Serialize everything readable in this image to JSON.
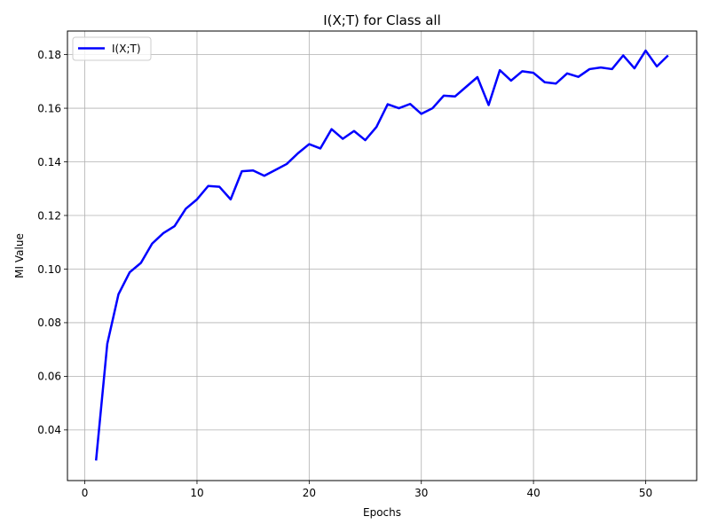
{
  "chart_data": {
    "type": "line",
    "title": "I(X;T) for Class all",
    "xlabel": "Epochs",
    "ylabel": "MI Value",
    "xlim": [
      -1.55,
      54.55
    ],
    "ylim": [
      0.0211,
      0.1888
    ],
    "xticks": [
      0,
      10,
      20,
      30,
      40,
      50
    ],
    "yticks": [
      0.04,
      0.06,
      0.08,
      0.1,
      0.12,
      0.14,
      0.16,
      0.18
    ],
    "xtick_labels": [
      "0",
      "10",
      "20",
      "30",
      "40",
      "50"
    ],
    "ytick_labels": [
      "0.04",
      "0.06",
      "0.08",
      "0.10",
      "0.12",
      "0.14",
      "0.16",
      "0.18"
    ],
    "grid": true,
    "legend_position": "top-left",
    "series": [
      {
        "name": "I(X;T)",
        "color": "#0000ff",
        "x": [
          1,
          2,
          3,
          4,
          5,
          6,
          7,
          8,
          9,
          10,
          11,
          12,
          13,
          14,
          15,
          16,
          17,
          18,
          19,
          20,
          21,
          22,
          23,
          24,
          25,
          26,
          27,
          28,
          29,
          30,
          31,
          32,
          33,
          34,
          35,
          36,
          37,
          38,
          39,
          40,
          41,
          42,
          43,
          44,
          45,
          46,
          47,
          48,
          49,
          50,
          51,
          52
        ],
        "values": [
          0.0286,
          0.0721,
          0.0906,
          0.0988,
          0.1023,
          0.1095,
          0.1134,
          0.116,
          0.1225,
          0.126,
          0.131,
          0.1307,
          0.126,
          0.1365,
          0.1368,
          0.1348,
          0.137,
          0.1392,
          0.1432,
          0.1466,
          0.145,
          0.1522,
          0.1486,
          0.1515,
          0.1481,
          0.153,
          0.1615,
          0.16,
          0.1616,
          0.1579,
          0.16,
          0.1647,
          0.1644,
          0.168,
          0.1716,
          0.1612,
          0.1742,
          0.1703,
          0.1738,
          0.1732,
          0.1697,
          0.1692,
          0.173,
          0.1717,
          0.1746,
          0.1752,
          0.1746,
          0.1797,
          0.1749,
          0.1815,
          0.1756,
          0.1797
        ]
      }
    ]
  }
}
